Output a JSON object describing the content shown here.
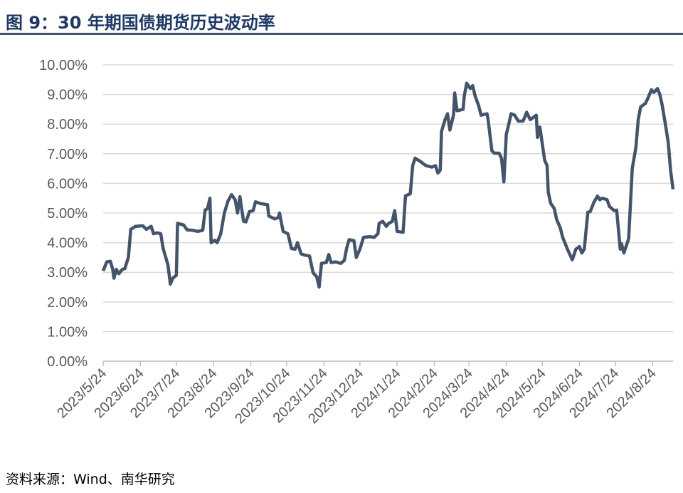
{
  "chart_data": {
    "type": "line",
    "title": "图 9：30 年期国债期货历史波动率",
    "source": "资料来源：Wind、南华研究",
    "x": [
      "2023/5/24",
      "2023/5/27",
      "2023/5/30",
      "2023/6/1",
      "2023/6/2",
      "2023/6/4",
      "2023/6/6",
      "2023/6/9",
      "2023/6/11",
      "2023/6/14",
      "2023/6/16",
      "2023/6/20",
      "2023/6/26",
      "2023/6/29",
      "2023/7/3",
      "2023/7/5",
      "2023/7/8",
      "2023/7/11",
      "2023/7/13",
      "2023/7/17",
      "2023/7/19",
      "2023/7/21",
      "2023/7/24",
      "2023/7/25",
      "2023/7/30",
      "2023/8/2",
      "2023/8/6",
      "2023/8/11",
      "2023/8/15",
      "2023/8/17",
      "2023/8/19",
      "2023/8/21",
      "2023/8/22",
      "2023/8/25",
      "2023/8/27",
      "2023/8/30",
      "2023/9/2",
      "2023/9/5",
      "2023/9/8",
      "2023/9/11",
      "2023/9/13",
      "2023/9/15",
      "2023/9/18",
      "2023/9/20",
      "2023/9/23",
      "2023/9/26",
      "2023/9/28",
      "2023/10/2",
      "2023/10/8",
      "2023/10/9",
      "2023/10/14",
      "2023/10/17",
      "2023/10/18",
      "2023/10/21",
      "2023/10/25",
      "2023/10/28",
      "2023/10/31",
      "2023/11/2",
      "2023/11/5",
      "2023/11/8",
      "2023/11/12",
      "2023/11/15",
      "2023/11/18",
      "2023/11/20",
      "2023/11/22",
      "2023/11/26",
      "2023/11/28",
      "2023/11/30",
      "2023/12/4",
      "2023/12/8",
      "2023/12/11",
      "2023/12/13",
      "2023/12/15",
      "2023/12/19",
      "2023/12/21",
      "2023/12/24",
      "2023/12/27",
      "2024/1/1",
      "2024/1/5",
      "2024/1/8",
      "2024/1/9",
      "2024/1/12",
      "2024/1/15",
      "2024/1/17",
      "2024/1/20",
      "2024/1/22",
      "2024/1/24",
      "2024/1/29",
      "2024/1/31",
      "2024/2/4",
      "2024/2/6",
      "2024/2/8",
      "2024/2/12",
      "2024/2/17",
      "2024/2/22",
      "2024/2/25",
      "2024/2/27",
      "2024/2/29",
      "2024/3/1",
      "2024/3/4",
      "2024/3/6",
      "2024/3/8",
      "2024/3/11",
      "2024/3/12",
      "2024/3/14",
      "2024/3/19",
      "2024/3/20",
      "2024/3/22",
      "2024/3/25",
      "2024/3/27",
      "2024/3/29",
      "2024/4/1",
      "2024/4/3",
      "2024/4/8",
      "2024/4/9",
      "2024/4/12",
      "2024/4/14",
      "2024/4/18",
      "2024/4/20",
      "2024/4/22",
      "2024/4/24",
      "2024/4/26",
      "2024/4/28",
      "2024/5/1",
      "2024/5/4",
      "2024/5/8",
      "2024/5/11",
      "2024/5/14",
      "2024/5/19",
      "2024/5/20",
      "2024/5/22",
      "2024/5/26",
      "2024/5/28",
      "2024/5/29",
      "2024/5/31",
      "2024/6/3",
      "2024/6/5",
      "2024/6/8",
      "2024/6/10",
      "2024/6/14",
      "2024/6/18",
      "2024/6/21",
      "2024/6/24",
      "2024/6/26",
      "2024/6/28",
      "2024/7/1",
      "2024/7/3",
      "2024/7/6",
      "2024/7/9",
      "2024/7/11",
      "2024/7/13",
      "2024/7/17",
      "2024/7/19",
      "2024/7/23",
      "2024/7/25",
      "2024/7/28",
      "2024/7/29",
      "2024/7/31",
      "2024/8/4",
      "2024/8/6",
      "2024/8/7",
      "2024/8/10",
      "2024/8/12",
      "2024/8/14",
      "2024/8/18",
      "2024/8/20",
      "2024/8/23",
      "2024/8/25",
      "2024/8/28",
      "2024/8/30",
      "2024/9/1",
      "2024/9/4",
      "2024/9/6",
      "2024/9/8",
      "2024/9/10"
    ],
    "series": [
      {
        "color": "#44546a",
        "values": [
          3.05,
          3.35,
          3.37,
          3.1,
          2.8,
          3.1,
          2.95,
          3.1,
          3.12,
          3.5,
          4.45,
          4.55,
          4.57,
          4.45,
          4.55,
          4.3,
          4.33,
          4.3,
          3.8,
          3.25,
          2.6,
          2.8,
          2.9,
          4.65,
          4.6,
          4.43,
          4.42,
          4.38,
          4.42,
          5.1,
          5.15,
          5.5,
          4.0,
          4.08,
          4.0,
          4.3,
          5.0,
          5.4,
          5.62,
          5.45,
          5.0,
          5.55,
          4.72,
          4.7,
          5.05,
          5.08,
          5.38,
          5.32,
          5.28,
          4.9,
          4.8,
          4.85,
          5.0,
          4.38,
          4.3,
          3.8,
          3.78,
          4.0,
          3.62,
          3.58,
          3.55,
          2.98,
          2.85,
          2.5,
          3.3,
          3.33,
          3.6,
          3.33,
          3.35,
          3.3,
          3.4,
          3.82,
          4.1,
          4.07,
          3.5,
          3.78,
          4.18,
          4.2,
          4.18,
          4.3,
          4.65,
          4.72,
          4.55,
          4.65,
          4.72,
          5.08,
          4.38,
          4.35,
          5.58,
          5.65,
          6.6,
          6.85,
          6.75,
          6.6,
          6.55,
          6.6,
          6.35,
          6.45,
          7.75,
          8.15,
          8.35,
          7.8,
          8.3,
          9.05,
          8.45,
          8.5,
          8.95,
          9.38,
          9.2,
          9.3,
          8.95,
          8.62,
          8.3,
          8.35,
          8.1,
          7.1,
          7.02,
          7.02,
          6.85,
          6.05,
          7.65,
          7.98,
          8.35,
          8.3,
          8.1,
          8.1,
          8.4,
          8.15,
          8.3,
          7.55,
          7.9,
          6.78,
          6.6,
          5.7,
          5.33,
          5.15,
          4.78,
          4.5,
          4.18,
          3.78,
          3.42,
          3.78,
          3.87,
          3.65,
          3.78,
          5.03,
          5.05,
          5.36,
          5.57,
          5.45,
          5.5,
          5.45,
          5.22,
          5.08,
          5.1,
          3.78,
          3.97,
          3.65,
          4.13,
          5.7,
          6.5,
          7.2,
          8.15,
          8.58,
          8.7,
          8.87,
          9.16,
          9.07,
          9.2,
          9.0,
          8.63,
          7.9,
          7.38,
          6.42,
          5.8
        ]
      }
    ],
    "xlim": [
      "2023/5/24",
      "2024/9/10"
    ],
    "xticks": [
      "2023/5/24",
      "2023/6/24",
      "2023/7/24",
      "2023/8/24",
      "2023/9/24",
      "2023/10/24",
      "2023/11/24",
      "2023/12/24",
      "2024/1/24",
      "2024/2/24",
      "2024/3/24",
      "2024/4/24",
      "2024/5/24",
      "2024/6/24",
      "2024/7/24",
      "2024/8/24"
    ],
    "ylim": [
      0,
      10
    ],
    "yticks": [
      {
        "value": 0,
        "label": "0.00%"
      },
      {
        "value": 1,
        "label": "1.00%"
      },
      {
        "value": 2,
        "label": "2.00%"
      },
      {
        "value": 3,
        "label": "3.00%"
      },
      {
        "value": 4,
        "label": "4.00%"
      },
      {
        "value": 5,
        "label": "5.00%"
      },
      {
        "value": 6,
        "label": "6.00%"
      },
      {
        "value": 7,
        "label": "7.00%"
      },
      {
        "value": 8,
        "label": "8.00%"
      },
      {
        "value": 9,
        "label": "9.00%"
      },
      {
        "value": 10,
        "label": "10.00%"
      }
    ],
    "grid": true
  }
}
